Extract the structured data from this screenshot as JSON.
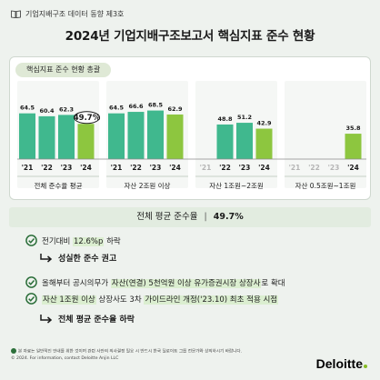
{
  "header": {
    "series": "기업지배구조 데이터 동향 제3호",
    "title": "2024년 기업지배구조보고서 핵심지표 준수 현황"
  },
  "panel": {
    "tab_label": "핵심지표 준수 현황 총괄"
  },
  "chart_data": {
    "type": "bar",
    "groups": [
      {
        "name": "전체 준수율 평균",
        "categories": [
          "'21",
          "'22",
          "'23",
          "'24"
        ],
        "values": [
          64.5,
          60.4,
          62.3,
          49.7
        ],
        "labels": [
          "64.5",
          "60.4",
          "62.3",
          "49.7%"
        ]
      },
      {
        "name": "자산 2조원 이상",
        "categories": [
          "'21",
          "'22",
          "'23",
          "'24"
        ],
        "values": [
          64.5,
          66.6,
          68.5,
          62.9
        ],
        "labels": [
          "64.5",
          "66.6",
          "68.5",
          "62.9"
        ]
      },
      {
        "name": "자산 1조원~2조원",
        "categories": [
          "'21",
          "'22",
          "'23",
          "'24"
        ],
        "values": [
          null,
          48.8,
          51.2,
          42.9
        ],
        "labels": [
          "",
          "48.8",
          "51.2",
          "42.9"
        ]
      },
      {
        "name": "자산 0.5조원~1조원",
        "categories": [
          "'21",
          "'22",
          "'23",
          "'24"
        ],
        "values": [
          null,
          null,
          null,
          35.8
        ],
        "labels": [
          "",
          "",
          "",
          "35.8"
        ]
      }
    ],
    "unit": "%",
    "highlight": {
      "group": 0,
      "index": 3
    },
    "colors": {
      "past": "#40b88e",
      "current": "#8dc63f",
      "highlight_text": "#1a1a1a",
      "muted_tick": "#b5b5b5"
    }
  },
  "summary": {
    "label": "전체 평균 준수율",
    "sep": "|",
    "value": "49.7%"
  },
  "points": [
    {
      "parts": [
        "전기대비 ",
        "12.6%p",
        " 하락"
      ],
      "hl": [
        false,
        true,
        false
      ]
    },
    {
      "parts": [
        "올해부터 공시의무가 ",
        "자산(연결) 5천억원 이상 유가증권시장 상장사",
        "로 확대"
      ],
      "hl": [
        false,
        true,
        false
      ]
    },
    {
      "parts": [
        "자산 1조원 이상",
        " 상장사도 3차 ",
        "가이드라인 개정('23.10) 최초 적용 시점"
      ],
      "hl": [
        true,
        false,
        true
      ]
    }
  ],
  "subs": {
    "first": "성실한 준수 권고",
    "second": "전체 평균 준수율 하락"
  },
  "footer": {
    "note1": "본 자료는 일반적인 안내를 위한 것이며 관련 사안의 의사결정 필요 시 반드시 한국 딜로이트 그룹 전문가와 상의하시기 바랍니다.",
    "note2": "© 2024. For information, contact Deloitte Anjin LLC"
  },
  "brand": "Deloitte"
}
